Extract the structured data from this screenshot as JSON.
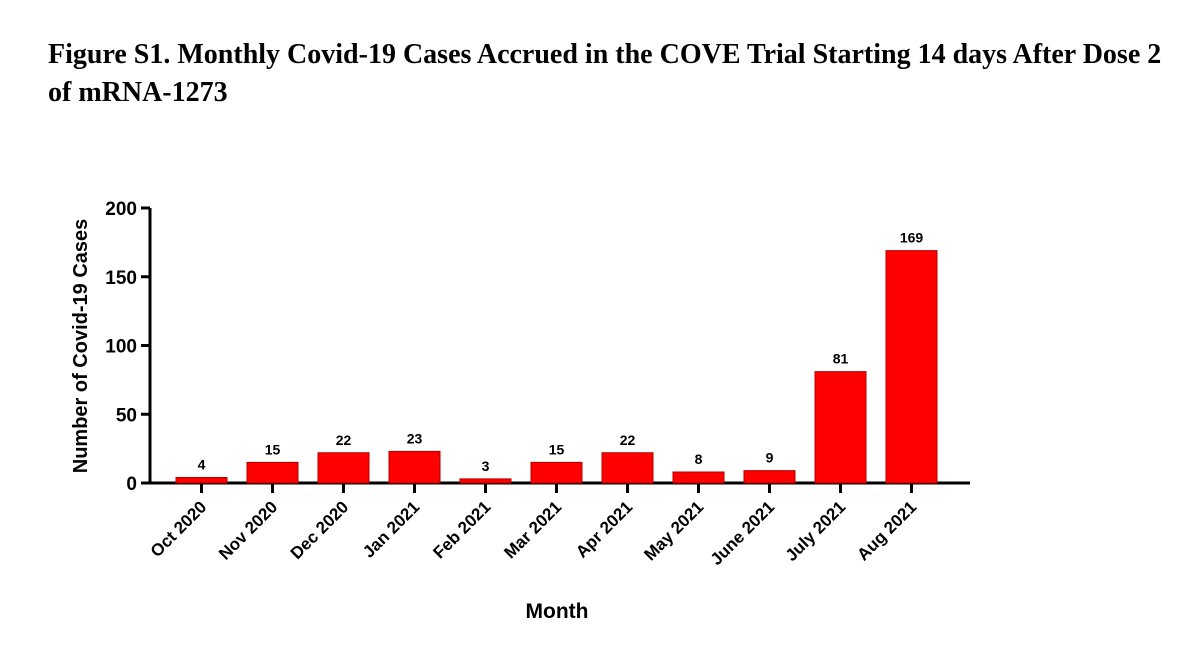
{
  "title": "Figure S1. Monthly Covid-19 Cases Accrued in the COVE Trial Starting 14 days After Dose 2 of mRNA-1273",
  "colors": {
    "bar": "#ff0000",
    "axis": "#000000"
  },
  "chart_data": {
    "type": "bar",
    "categories": [
      "Oct 2020",
      "Nov 2020",
      "Dec 2020",
      "Jan 2021",
      "Feb 2021",
      "Mar 2021",
      "Apr 2021",
      "May 2021",
      "June 2021",
      "July 2021",
      "Aug 2021"
    ],
    "values": [
      4,
      15,
      22,
      23,
      3,
      15,
      22,
      8,
      9,
      81,
      169
    ],
    "xlabel": "Month",
    "ylabel": "Number of Covid-19 Cases",
    "ylim": [
      0,
      200
    ],
    "yticks": [
      0,
      50,
      100,
      150,
      200
    ],
    "grid": false,
    "data_labels": true
  }
}
